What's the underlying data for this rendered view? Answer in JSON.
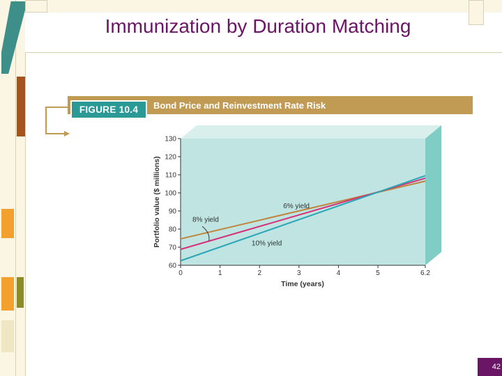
{
  "slide": {
    "title": "Immunization by Duration Matching",
    "page_number": "42"
  },
  "figure": {
    "tag": "FIGURE 10.4",
    "caption": "Bond Price and Reinvestment Rate Risk"
  },
  "colors": {
    "title": "#6a1566",
    "banner": "#c19a54",
    "tag": "#2b9a96",
    "plot_front": "#bfe4e1",
    "plot_top": "#d8efec",
    "plot_side": "#7fcdc4",
    "series_6": "#c0843a",
    "series_8": "#d6307a",
    "series_10": "#2aa5b5"
  },
  "chart_data": {
    "type": "line",
    "title": "Bond Price and Reinvestment Rate Risk",
    "xlabel": "Time (years)",
    "ylabel": "Portfolio value ($ millions)",
    "x_ticks": [
      "0",
      "1",
      "2",
      "3",
      "4",
      "5",
      "6.2"
    ],
    "y_ticks": [
      "60",
      "70",
      "80",
      "90",
      "100",
      "110",
      "120",
      "130"
    ],
    "xlim": [
      0,
      6.2
    ],
    "ylim": [
      60,
      130
    ],
    "grid": false,
    "series": [
      {
        "name": "6% yield",
        "x": [
          0,
          6.2
        ],
        "y": [
          74.6,
          106.5
        ]
      },
      {
        "name": "8% yield",
        "x": [
          0,
          6.2
        ],
        "y": [
          68.8,
          108.1
        ]
      },
      {
        "name": "10% yield",
        "x": [
          0,
          6.2
        ],
        "y": [
          62.5,
          109.5
        ]
      }
    ],
    "annotations": [
      "6% yield",
      "8% yield",
      "10% yield"
    ]
  }
}
